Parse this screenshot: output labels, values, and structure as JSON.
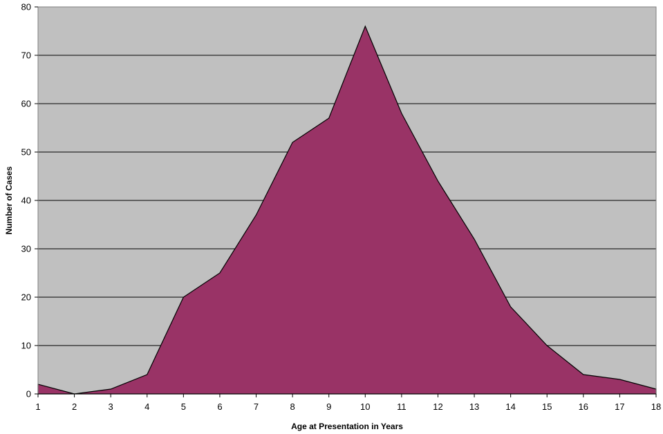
{
  "chart_data": {
    "type": "area",
    "title": "",
    "xlabel": "Age at Presentation in Years",
    "ylabel": "Number of Cases",
    "x": [
      1,
      2,
      3,
      4,
      5,
      6,
      7,
      8,
      9,
      10,
      11,
      12,
      13,
      14,
      15,
      16,
      17,
      18
    ],
    "series": [
      {
        "name": "",
        "values": [
          2,
          0,
          1,
          4,
          20,
          25,
          37,
          52,
          57,
          76,
          58,
          44,
          32,
          18,
          10,
          4,
          3,
          1
        ]
      }
    ],
    "ylim": [
      0,
      80
    ],
    "yticks": [
      0,
      10,
      20,
      30,
      40,
      50,
      60,
      70,
      80
    ],
    "grid": true,
    "legend": "none",
    "colors": {
      "plot_background": "#c0c0c0",
      "area_fill": "#993366",
      "area_stroke": "#000000",
      "grid": "#000000"
    }
  }
}
